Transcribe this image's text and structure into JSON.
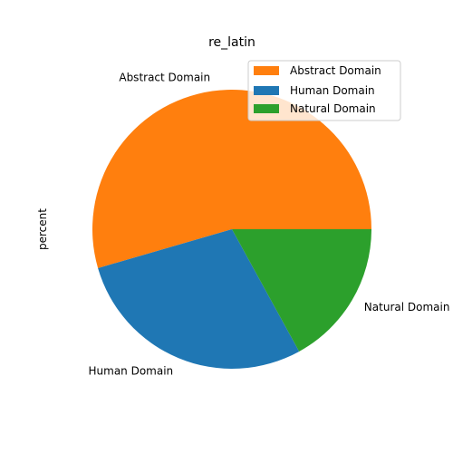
{
  "chart_data": {
    "type": "pie",
    "title": "re_latin",
    "ylabel": "percent",
    "slices": [
      {
        "label": "Abstract Domain",
        "value": 54.5,
        "color": "#ff7f0e"
      },
      {
        "label": "Human Domain",
        "value": 28.5,
        "color": "#1f77b4"
      },
      {
        "label": "Natural Domain",
        "value": 17.0,
        "color": "#2ca02c"
      }
    ],
    "start_angle_deg": 0,
    "direction": "counterclockwise",
    "legend": {
      "placement": "top-right",
      "entries": [
        "Abstract Domain",
        "Human Domain",
        "Natural Domain"
      ]
    }
  }
}
